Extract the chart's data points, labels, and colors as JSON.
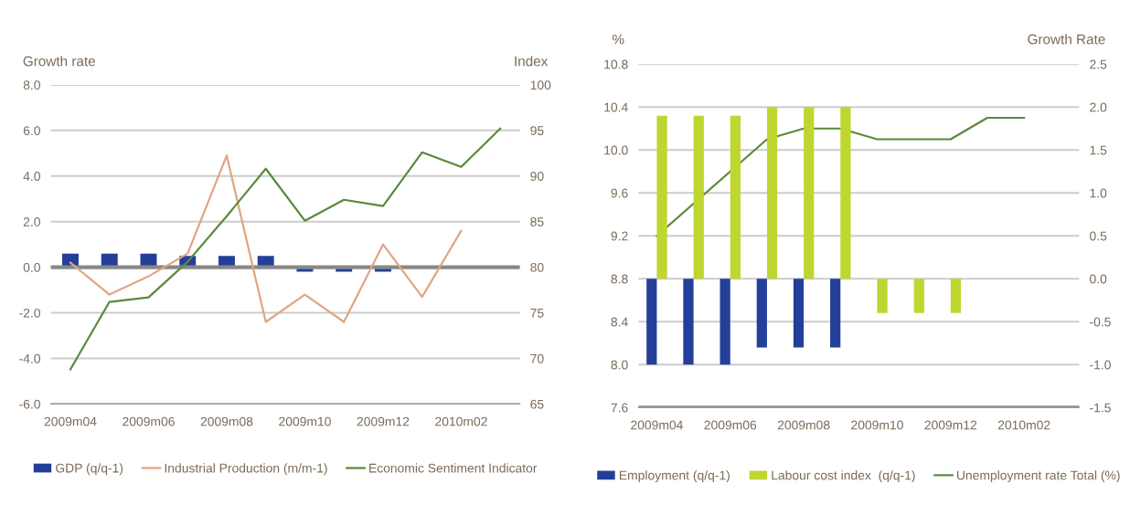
{
  "chart_data": [
    {
      "type": "bar",
      "ylabel": "Growth rate",
      "y2label": "Index",
      "categories": [
        "2009m04",
        null,
        "2009m06",
        null,
        "2009m08",
        null,
        "2009m10",
        null,
        "2009m12",
        null,
        "2010m02",
        null
      ],
      "series": [
        {
          "name": "GDP (q/q-1)",
          "color": "#233f99",
          "values": [
            0.6,
            0.6,
            0.6,
            0.5,
            0.5,
            0.5,
            -0.2,
            -0.2,
            -0.2,
            null,
            null,
            null
          ]
        },
        {
          "name": "Industrial Production (m/m-1)",
          "type": "line",
          "color": "#e0a582",
          "values": [
            0.2,
            -1.2,
            -0.4,
            0.6,
            4.9,
            -2.4,
            -1.2,
            -2.4,
            1.0,
            -1.3,
            1.6,
            null
          ]
        },
        {
          "name": "Economic Sentiment Indicator",
          "type": "line",
          "axis": "y2",
          "color": "#5a8a3c",
          "values": [
            68.8,
            76.2,
            76.7,
            80.6,
            85.6,
            90.8,
            85.1,
            87.4,
            86.7,
            92.6,
            91.0,
            95.2
          ]
        }
      ],
      "ylim": [
        -6,
        8
      ],
      "yticks": [
        {
          "value": -6,
          "label": "-6.0"
        },
        {
          "value": -4,
          "label": "-4.0"
        },
        {
          "value": -2,
          "label": "-2.0"
        },
        {
          "value": 0,
          "label": "0.0"
        },
        {
          "value": 2,
          "label": "2.0"
        },
        {
          "value": 4,
          "label": "4.0"
        },
        {
          "value": 6,
          "label": "6.0"
        },
        {
          "value": 8,
          "label": "8.0"
        }
      ],
      "y2lim": [
        65,
        100
      ],
      "y2ticks": [
        65,
        70,
        75,
        80,
        85,
        90,
        95,
        100
      ],
      "grid": "y",
      "legend": "bottom",
      "marker": "none",
      "line_style": "solid"
    },
    {
      "type": "bar",
      "ylabel": "%",
      "y2label": "Growth Rate",
      "categories": [
        "2009m04",
        null,
        "2009m06",
        null,
        "2009m08",
        null,
        "2009m10",
        null,
        "2009m12",
        null,
        "2010m02",
        null
      ],
      "series": [
        {
          "name": "Employment (q/q-1)",
          "axis": "y2",
          "color": "#233f99",
          "values": [
            -1.0,
            -1.0,
            -1.0,
            -0.8,
            -0.8,
            -0.8,
            null,
            null,
            null,
            null,
            null,
            null
          ]
        },
        {
          "name": "Labour cost index  (q/q-1)",
          "axis": "y2",
          "color": "#bfd630",
          "values": [
            1.9,
            1.9,
            1.9,
            2.0,
            2.0,
            2.0,
            -0.4,
            -0.4,
            -0.4,
            null,
            null,
            null
          ]
        },
        {
          "name": "Unemployment rate Total (%)",
          "type": "line",
          "color": "#5a8a3c",
          "values": [
            9.2,
            9.5,
            9.8,
            10.1,
            10.2,
            10.2,
            10.1,
            10.1,
            10.1,
            10.3,
            10.3,
            null
          ]
        }
      ],
      "ylim": [
        7.6,
        10.8
      ],
      "yticks": [
        7.6,
        {
          "value": 8,
          "label": "8.0"
        },
        8.4,
        8.8,
        9.2,
        9.6,
        {
          "value": 10,
          "label": "10.0"
        },
        10.4,
        10.8
      ],
      "y2lim": [
        -1.5,
        2.5
      ],
      "y2ticks": [
        -1.5,
        {
          "value": -1,
          "label": "-1.0"
        },
        -0.5,
        {
          "value": 0,
          "label": "0.0"
        },
        0.5,
        {
          "value": 1,
          "label": "1.0"
        },
        1.5,
        {
          "value": 2,
          "label": "2.0"
        },
        2.5
      ],
      "grid": "y",
      "legend": "bottom",
      "marker": "none",
      "line_style": "solid"
    }
  ]
}
